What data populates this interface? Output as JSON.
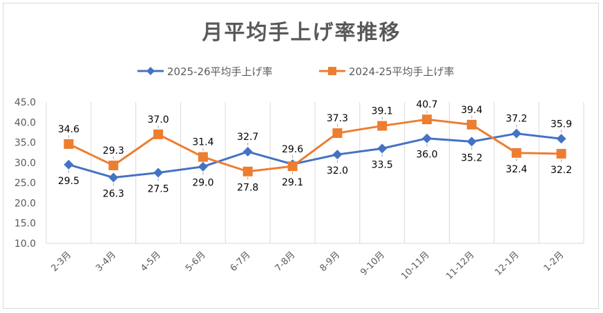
{
  "chart_data": {
    "type": "line",
    "title": "月平均手上げ率推移",
    "categories": [
      "2-3月",
      "3-4月",
      "4-5月",
      "5-6月",
      "6-7月",
      "7-8月",
      "8-9月",
      "9-10月",
      "10-11月",
      "11-12月",
      "12-1月",
      "1-2月"
    ],
    "series": [
      {
        "name": "2025-26平均手上げ率",
        "color": "#4472c4",
        "marker": "diamond",
        "values": [
          29.5,
          26.3,
          27.5,
          29.0,
          32.7,
          29.6,
          32.0,
          33.5,
          36.0,
          35.2,
          37.2,
          35.9
        ],
        "labels": [
          "29.5",
          "26.3",
          "27.5",
          "29.0",
          "32.7",
          "29.6",
          "32.0",
          "33.5",
          "36.0",
          "35.2",
          "37.2",
          "35.9"
        ]
      },
      {
        "name": "2024-25平均手上げ率",
        "color": "#ed7d31",
        "marker": "square",
        "values": [
          34.6,
          29.3,
          37.0,
          31.4,
          27.8,
          29.1,
          37.3,
          39.1,
          40.7,
          39.4,
          32.4,
          32.2
        ],
        "labels": [
          "34.6",
          "29.3",
          "37.0",
          "31.4",
          "27.8",
          "29.1",
          "37.3",
          "39.1",
          "40.7",
          "39.4",
          "32.4",
          "32.2"
        ]
      }
    ],
    "yticks": [
      "45.0",
      "40.0",
      "35.0",
      "30.0",
      "25.0",
      "20.0",
      "15.0",
      "10.0"
    ],
    "ylim": [
      10,
      45
    ],
    "xlabel": "",
    "ylabel": "",
    "legend_position": "top",
    "grid": "vertical"
  }
}
